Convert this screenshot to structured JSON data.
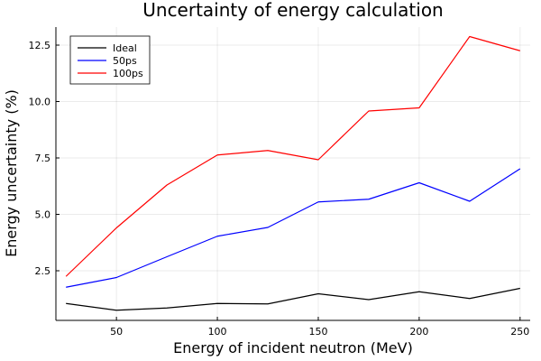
{
  "chart_data": {
    "type": "line",
    "title": "Uncertainty of energy calculation",
    "xlabel": "Energy of incident neutron (MeV)",
    "ylabel": "Energy uncertainty (%)",
    "x": [
      25,
      50,
      75,
      100,
      125,
      150,
      175,
      200,
      225,
      250
    ],
    "xlim": [
      20,
      255
    ],
    "ylim": [
      0.3,
      13.3
    ],
    "xticks": [
      50,
      100,
      150,
      200,
      250
    ],
    "xtick_labels": [
      "50",
      "100",
      "150",
      "200",
      "250"
    ],
    "yticks": [
      2.5,
      5.0,
      7.5,
      10.0,
      12.5
    ],
    "ytick_labels": [
      "2.5",
      "5.0",
      "7.5",
      "10.0",
      "12.5"
    ],
    "grid": true,
    "legend_position": "top-left",
    "series": [
      {
        "name": "Ideal",
        "color": "#000000",
        "values": [
          1.05,
          0.75,
          0.85,
          1.05,
          1.03,
          1.48,
          1.22,
          1.57,
          1.27,
          1.72
        ]
      },
      {
        "name": "50ps",
        "color": "#0000ff",
        "values": [
          1.77,
          2.2,
          3.12,
          4.03,
          4.42,
          5.55,
          5.67,
          6.4,
          5.58,
          7.02
        ]
      },
      {
        "name": "100ps",
        "color": "#ff0000",
        "values": [
          2.25,
          4.4,
          6.3,
          7.63,
          7.83,
          7.42,
          9.58,
          9.72,
          12.88,
          12.25
        ]
      }
    ]
  }
}
